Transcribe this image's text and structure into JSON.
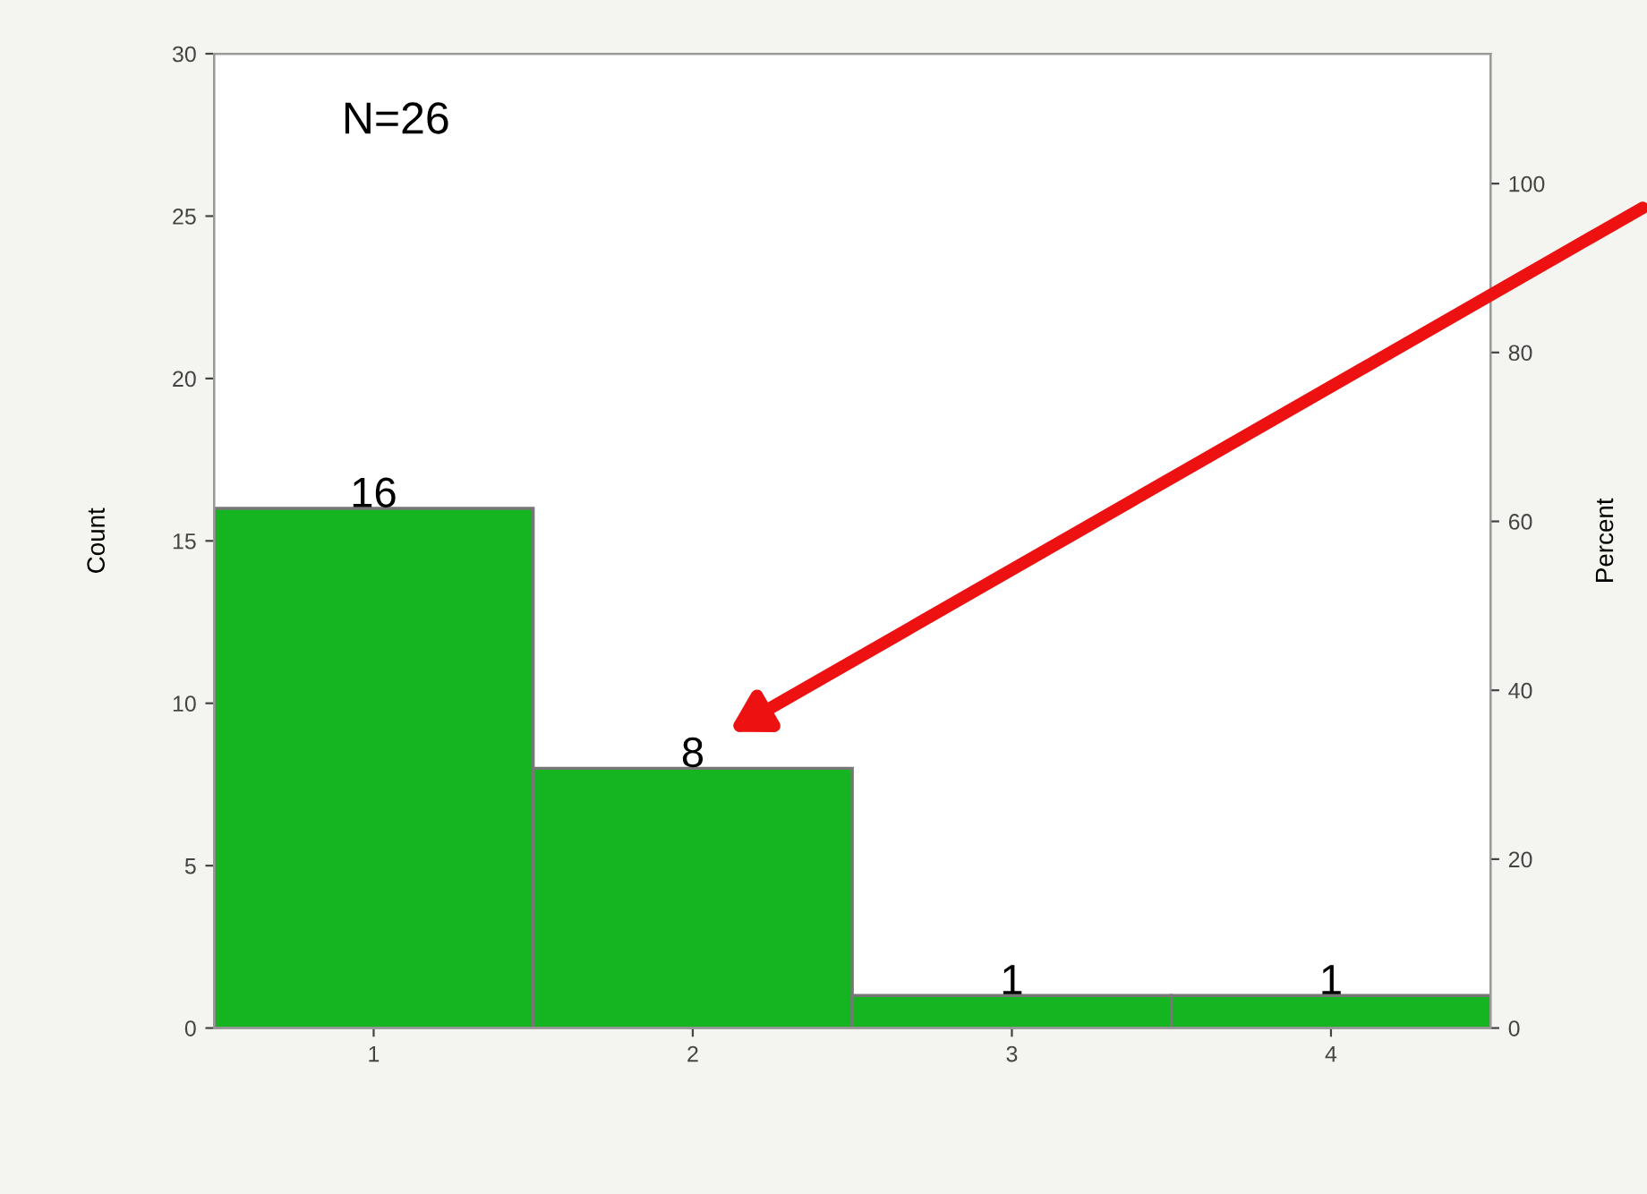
{
  "chart_data": {
    "type": "bar",
    "categories": [
      "1",
      "2",
      "3",
      "4"
    ],
    "values": [
      16,
      8,
      1,
      1
    ],
    "color": "#14b520",
    "data_labels": true,
    "ylabel": "Count",
    "y2label": "Percent",
    "ylim": [
      0,
      30
    ],
    "yticks": [
      0,
      5,
      10,
      15,
      20,
      25,
      30
    ],
    "y2lim": [
      0,
      115.38
    ],
    "y2ticks": [
      0,
      20,
      40,
      60,
      80,
      100
    ],
    "annotations": [
      "N=26"
    ],
    "grid": false
  }
}
